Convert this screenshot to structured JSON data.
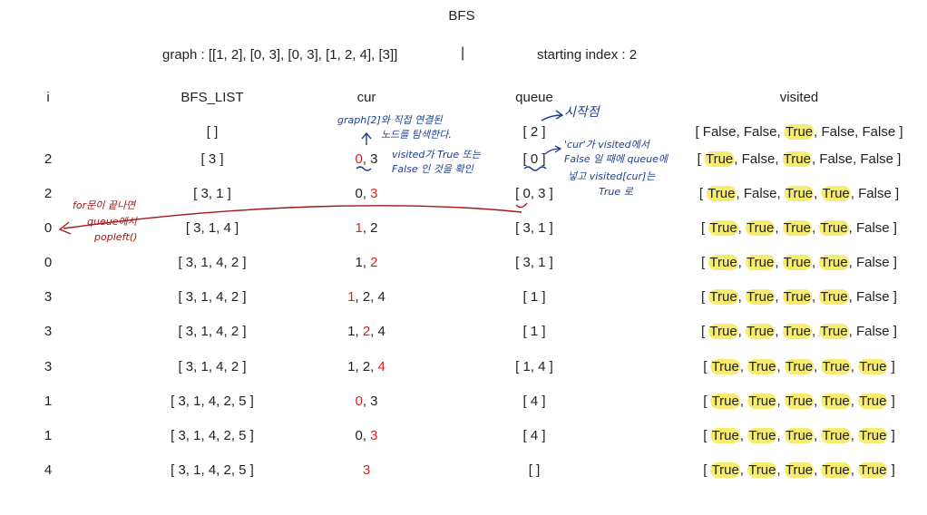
{
  "title": "BFS",
  "graph_text": "graph : [[1, 2], [0, 3], [0, 3], [1, 2, 4], [3]]",
  "separator": "|",
  "start_text": "starting index : 2",
  "headers": {
    "i": "i",
    "bfs": "BFS_LIST",
    "cur": "cur",
    "queue": "queue",
    "visited": "visited"
  },
  "rows": [
    {
      "i": "",
      "bfs": "[ ]",
      "cur": [],
      "queue": "[ 2 ]",
      "visited": [
        false,
        false,
        true,
        false,
        false
      ]
    },
    {
      "i": "2",
      "bfs": "[ 3 ]",
      "cur": [
        {
          "v": "0",
          "red": true
        },
        {
          "v": "3",
          "red": false
        }
      ],
      "queue": "[ 0 ]",
      "visited": [
        true,
        false,
        true,
        false,
        false
      ]
    },
    {
      "i": "2",
      "bfs": "[ 3, 1 ]",
      "cur": [
        {
          "v": "0",
          "red": false
        },
        {
          "v": "3",
          "red": true
        }
      ],
      "queue": "[ 0, 3 ]",
      "visited": [
        true,
        false,
        true,
        true,
        false
      ]
    },
    {
      "i": "0",
      "bfs": "[ 3, 1, 4 ]",
      "cur": [
        {
          "v": "1",
          "red": true
        },
        {
          "v": "2",
          "red": false
        }
      ],
      "queue": "[ 3, 1 ]",
      "visited": [
        true,
        true,
        true,
        true,
        false
      ]
    },
    {
      "i": "0",
      "bfs": "[ 3, 1, 4, 2 ]",
      "cur": [
        {
          "v": "1",
          "red": false
        },
        {
          "v": "2",
          "red": true
        }
      ],
      "queue": "[ 3, 1 ]",
      "visited": [
        true,
        true,
        true,
        true,
        false
      ]
    },
    {
      "i": "3",
      "bfs": "[ 3, 1, 4, 2 ]",
      "cur": [
        {
          "v": "1",
          "red": true
        },
        {
          "v": "2",
          "red": false
        },
        {
          "v": "4",
          "red": false
        }
      ],
      "queue": "[ 1 ]",
      "visited": [
        true,
        true,
        true,
        true,
        false
      ]
    },
    {
      "i": "3",
      "bfs": "[ 3, 1, 4, 2 ]",
      "cur": [
        {
          "v": "1",
          "red": false
        },
        {
          "v": "2",
          "red": true
        },
        {
          "v": "4",
          "red": false
        }
      ],
      "queue": "[ 1 ]",
      "visited": [
        true,
        true,
        true,
        true,
        false
      ]
    },
    {
      "i": "3",
      "bfs": "[ 3, 1, 4, 2 ]",
      "cur": [
        {
          "v": "1",
          "red": false
        },
        {
          "v": "2",
          "red": false
        },
        {
          "v": "4",
          "red": true
        }
      ],
      "queue": "[ 1, 4 ]",
      "visited": [
        true,
        true,
        true,
        true,
        true
      ]
    },
    {
      "i": "1",
      "bfs": "[ 3, 1, 4, 2, 5 ]",
      "cur": [
        {
          "v": "0",
          "red": true
        },
        {
          "v": "3",
          "red": false
        }
      ],
      "queue": "[ 4 ]",
      "visited": [
        true,
        true,
        true,
        true,
        true
      ]
    },
    {
      "i": "1",
      "bfs": "[ 3, 1, 4, 2, 5 ]",
      "cur": [
        {
          "v": "0",
          "red": false
        },
        {
          "v": "3",
          "red": true
        }
      ],
      "queue": "[ 4 ]",
      "visited": [
        true,
        true,
        true,
        true,
        true
      ]
    },
    {
      "i": "4",
      "bfs": "[ 3, 1, 4, 2, 5 ]",
      "cur": [
        {
          "v": "3",
          "red": true
        }
      ],
      "queue": "[  ]",
      "visited": [
        true,
        true,
        true,
        true,
        true
      ]
    }
  ],
  "annotations": {
    "cur_note_1": "graph[2]와 직접 연결된",
    "cur_note_2": "노드를 탐색한다.",
    "cur_note_3": "visited가 True 또는",
    "cur_note_4": "False 인 것을 확인",
    "queue_start": "시작점",
    "queue_note_1": "'cur'가 visited에서",
    "queue_note_2": "False 일 때에 queue에",
    "queue_note_3": "넣고 visited[cur]는",
    "queue_note_4": "True 로",
    "loop_note_1": "for문이 끝나면",
    "loop_note_2": "queue에서",
    "loop_note_3": "popleft()"
  },
  "colors": {
    "highlight": "#f7ec6e",
    "red_value": "#e02020",
    "note_blue": "#1e3f8f",
    "note_red": "#a01818"
  }
}
